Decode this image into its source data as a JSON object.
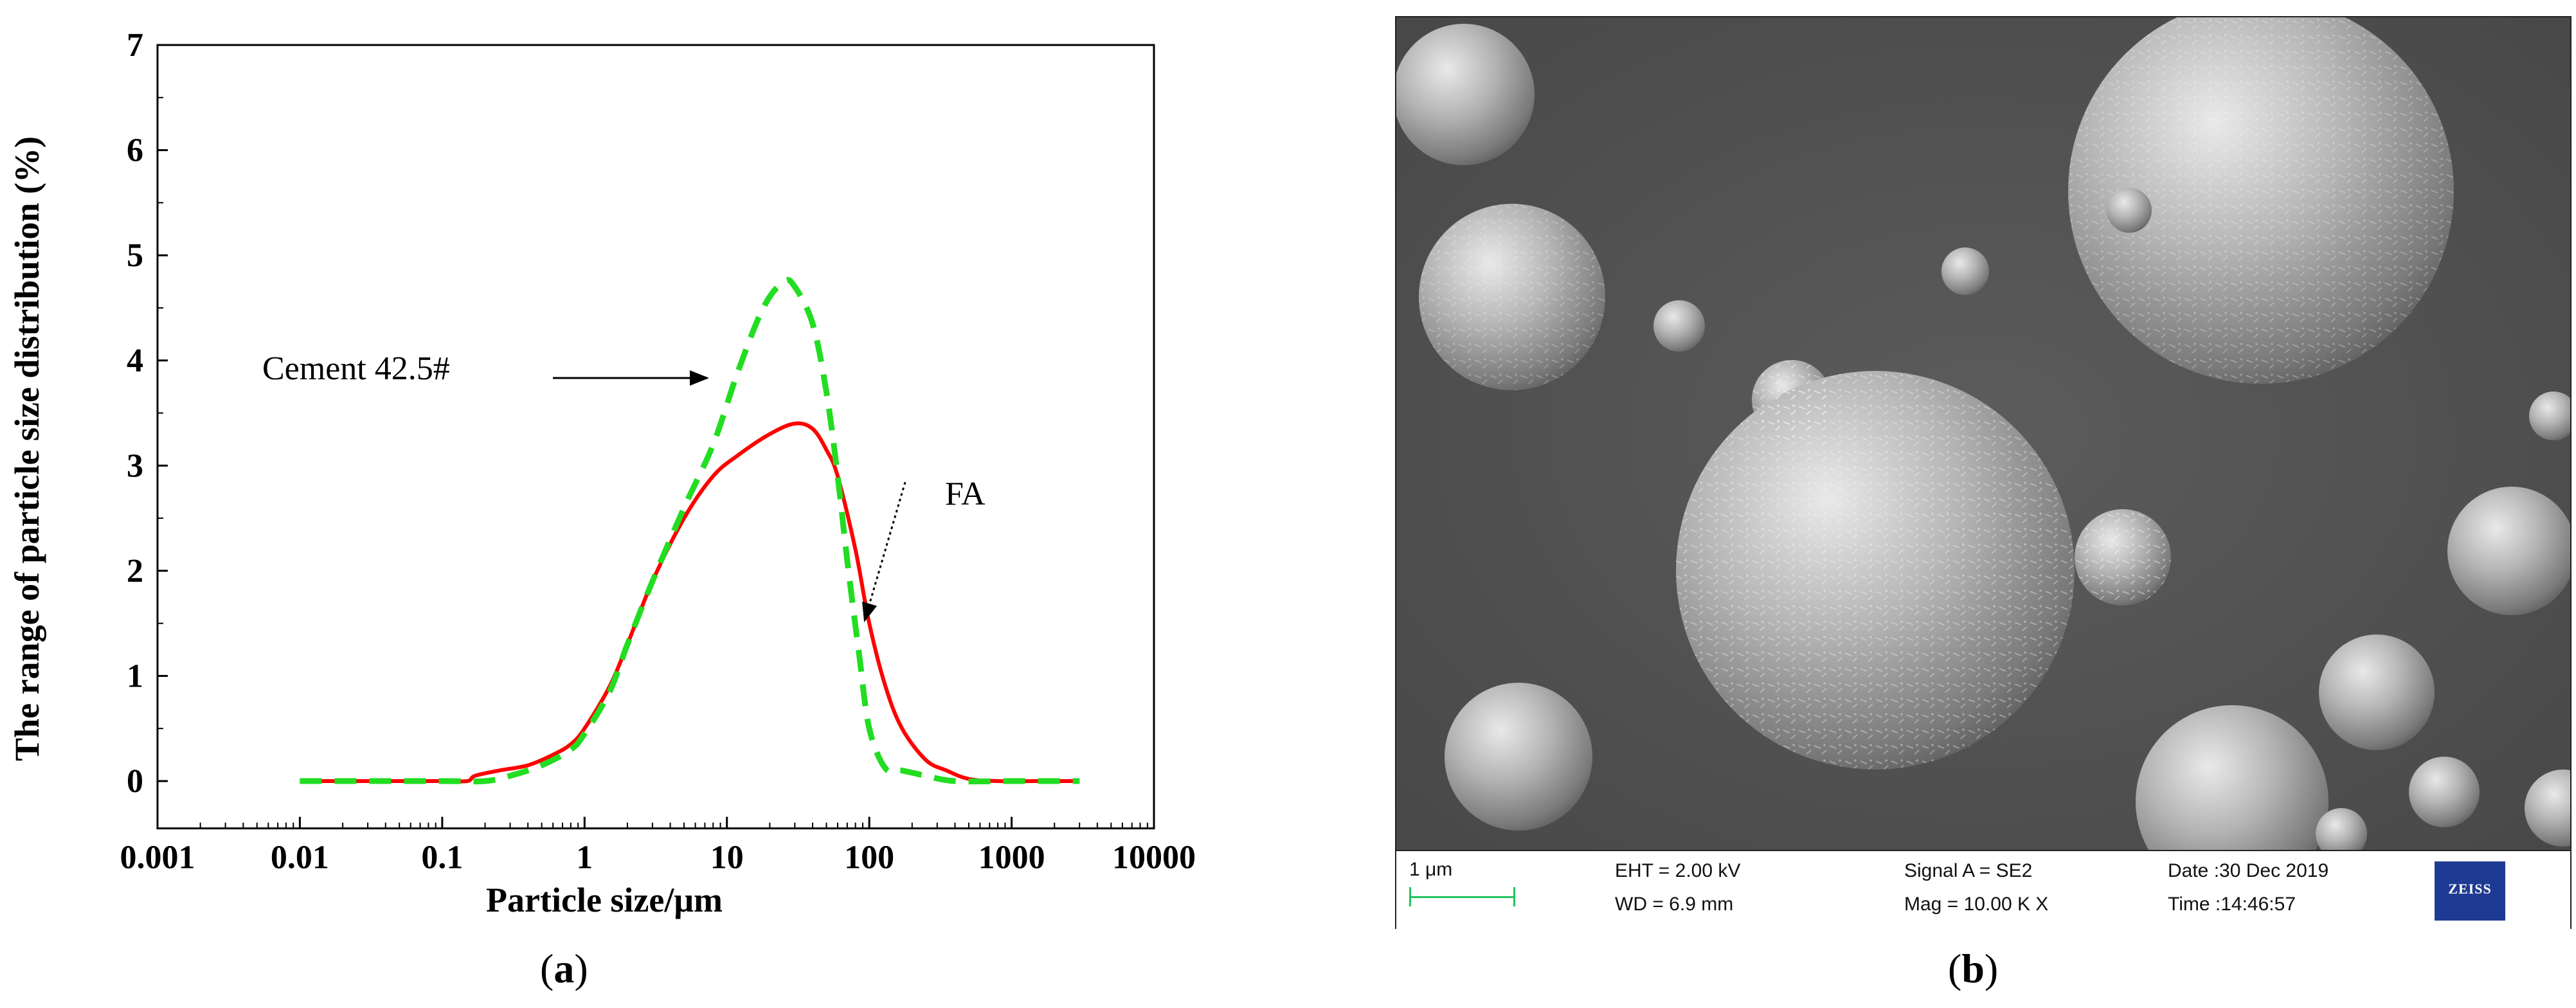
{
  "panel_a": {
    "caption_open": "(",
    "caption_letter": "a",
    "caption_close": ")"
  },
  "panel_b": {
    "caption_open": "(",
    "caption_letter": "b",
    "caption_close": ")",
    "databar": {
      "scale_label": "1 μm",
      "eht": "EHT =  2.00 kV",
      "wd": "WD =  6.9 mm",
      "signal": "Signal A = SE2",
      "mag": "Mag =   10.00 K X",
      "date": "Date :30 Dec 2019",
      "time": "Time :14:46:57",
      "logo": "ZEISS"
    },
    "scale_bar_color": "#22c55e"
  },
  "chart_data": {
    "type": "line",
    "xlabel": "Particle size/μm",
    "ylabel": "The range of particle size distribution (%)",
    "x_scale": "log",
    "xlim": [
      0.001,
      10000
    ],
    "ylim": [
      0,
      7
    ],
    "x_ticks": [
      0.001,
      0.01,
      0.1,
      1,
      10,
      100,
      1000,
      10000
    ],
    "x_tick_labels": [
      "0.001",
      "0.01",
      "0.1",
      "1",
      "10",
      "100",
      "1000",
      "10000"
    ],
    "y_ticks": [
      0,
      1,
      2,
      3,
      4,
      5,
      6,
      7
    ],
    "y_tick_labels": [
      "0",
      "1",
      "2",
      "3",
      "4",
      "5",
      "6",
      "7"
    ],
    "grid": false,
    "series": [
      {
        "name": "FA",
        "color": "#ff0000",
        "style": "solid",
        "x": [
          0.01,
          0.02,
          0.05,
          0.1,
          0.15,
          0.17,
          0.25,
          0.4,
          0.6,
          0.8,
          1,
          1.5,
          2,
          3,
          5,
          8,
          12,
          20,
          30,
          40,
          50,
          60,
          80,
          100,
          130,
          170,
          250,
          350,
          500,
          800,
          1500,
          3000
        ],
        "y": [
          0,
          0,
          0,
          0,
          0,
          0.05,
          0.1,
          0.15,
          0.25,
          0.35,
          0.5,
          0.9,
          1.3,
          1.9,
          2.5,
          2.9,
          3.1,
          3.3,
          3.4,
          3.35,
          3.15,
          2.9,
          2.2,
          1.5,
          0.9,
          0.5,
          0.2,
          0.1,
          0.02,
          0,
          0,
          0
        ]
      },
      {
        "name": "Cement 42.5#",
        "color": "#22dd22",
        "style": "dashed",
        "x": [
          0.01,
          0.1,
          0.2,
          0.3,
          0.5,
          0.8,
          1,
          1.5,
          2,
          3,
          5,
          8,
          12,
          18,
          25,
          30,
          40,
          50,
          60,
          70,
          85,
          100,
          130,
          170,
          250,
          400,
          1000,
          3000
        ],
        "y": [
          0,
          0,
          0,
          0.05,
          0.15,
          0.3,
          0.45,
          0.85,
          1.3,
          1.9,
          2.6,
          3.2,
          3.9,
          4.5,
          4.75,
          4.7,
          4.35,
          3.7,
          2.9,
          2.1,
          1.2,
          0.5,
          0.12,
          0.1,
          0.05,
          0,
          0,
          0
        ]
      }
    ],
    "annotations": [
      {
        "text": "Cement 42.5#",
        "target_series": "Cement 42.5#"
      },
      {
        "text": "FA",
        "target_series": "FA"
      }
    ]
  }
}
